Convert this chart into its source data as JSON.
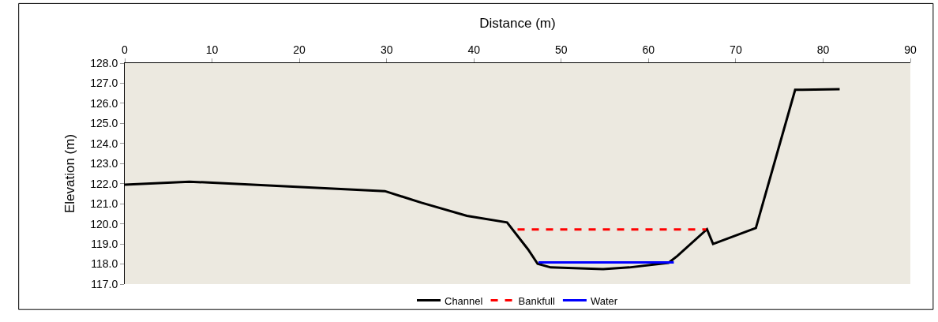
{
  "chart_data": {
    "type": "line",
    "xlabel": "Distance (m)",
    "ylabel": "Elevation (m)",
    "xlim": [
      0,
      90
    ],
    "xticks": [
      0,
      10,
      20,
      30,
      40,
      50,
      60,
      70,
      80,
      90
    ],
    "ylim": [
      117,
      128
    ],
    "yticks": [
      {
        "value": 117,
        "label": "117.0"
      },
      {
        "value": 118,
        "label": "118.0"
      },
      {
        "value": 119,
        "label": "119.0"
      },
      {
        "value": 120,
        "label": "120.0"
      },
      {
        "value": 121,
        "label": "121.0"
      },
      {
        "value": 122,
        "label": "122.0"
      },
      {
        "value": 123,
        "label": "123.0"
      },
      {
        "value": 124,
        "label": "124.0"
      },
      {
        "value": 125,
        "label": "125.0"
      },
      {
        "value": 126,
        "label": "126.0"
      },
      {
        "value": 127,
        "label": "127.0"
      },
      {
        "value": 128,
        "label": "128.0"
      }
    ],
    "grid": false,
    "legend": "bottom",
    "marker": "none",
    "series": [
      {
        "name": "Channel",
        "color": "#000000",
        "line_style": "solid",
        "x": [
          0,
          7.4,
          29.8,
          34,
          39.2,
          43.8,
          46.2,
          47.3,
          48.8,
          54.8,
          57.8,
          62.3,
          63.3,
          66.7,
          67.4,
          72.3,
          76.8,
          81.9
        ],
        "values": [
          121.95,
          122.1,
          121.63,
          121.05,
          120.4,
          120.07,
          118.73,
          118.01,
          117.83,
          117.75,
          117.83,
          118.06,
          118.4,
          119.73,
          119.0,
          119.79,
          126.67,
          126.7
        ]
      },
      {
        "name": "Bankfull",
        "color": "#ff0000",
        "line_style": "dashed",
        "x": [
          45.0,
          66.6
        ],
        "values": [
          119.72,
          119.72
        ]
      },
      {
        "name": "Water",
        "color": "#0000ff",
        "line_style": "solid",
        "x": [
          47.4,
          62.9
        ],
        "values": [
          118.08,
          118.08
        ]
      }
    ]
  }
}
